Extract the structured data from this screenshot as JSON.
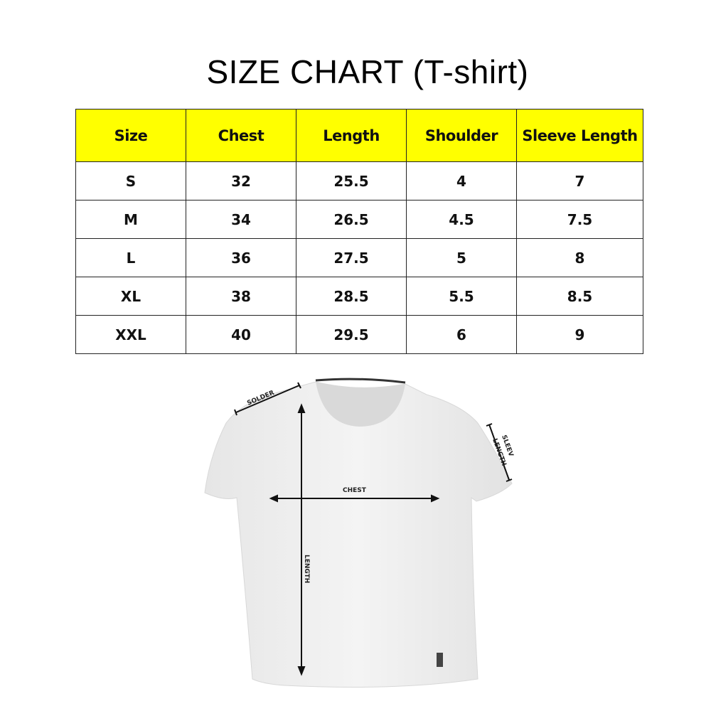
{
  "title": "SIZE CHART (T-shirt)",
  "table": {
    "headers": [
      "Size",
      "Chest",
      "Length",
      "Shoulder",
      "Sleeve Length"
    ],
    "rows": [
      [
        "S",
        "32",
        "25.5",
        "4",
        "7"
      ],
      [
        "M",
        "34",
        "26.5",
        "4.5",
        "7.5"
      ],
      [
        "L",
        "36",
        "27.5",
        "5",
        "8"
      ],
      [
        "XL",
        "38",
        "28.5",
        "5.5",
        "8.5"
      ],
      [
        "XXL",
        "40",
        "29.5",
        "6",
        "9"
      ]
    ],
    "header_color": "#ffff00"
  },
  "diagram": {
    "shoulder_label": "SOLDER",
    "sleeve_label_1": "SLEEV",
    "sleeve_label_2": "LENGTH",
    "chest_label": "CHEST",
    "length_label": "LENGTH"
  }
}
